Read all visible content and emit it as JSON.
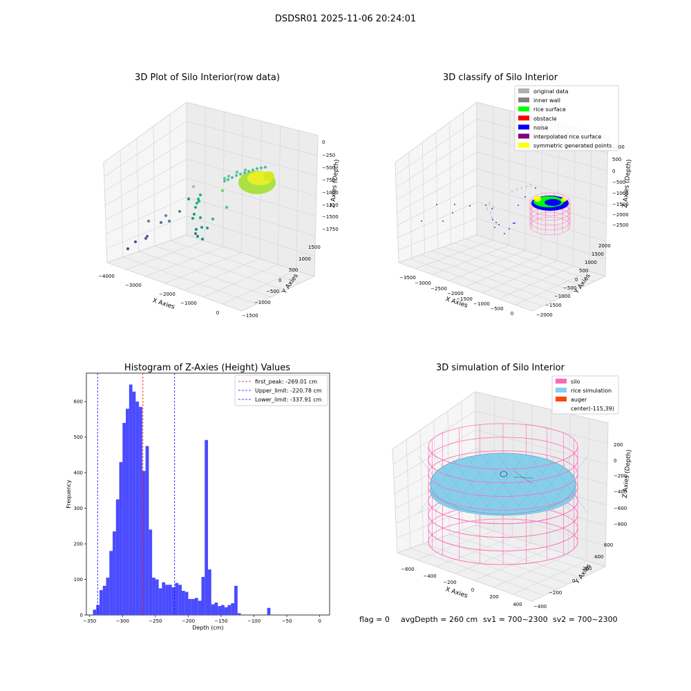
{
  "suptitle": "DSDSR01 2025-11-06 20:24:01",
  "footer": {
    "flag": "flag = 0",
    "avg_depth": "avgDepth = 260 cm",
    "sv1": "sv1 = 700~2300",
    "sv2": "sv2 = 700~2300"
  },
  "colors": {
    "histogram_bar": "#4b4bff",
    "first_peak": "#ff0000",
    "limits": "#0000ff",
    "silo": "#ff69b4",
    "rice_simulation": "#87ceeb",
    "auger": "#ff4500",
    "rice_surface": "#00ff00",
    "noise": "#0000ff",
    "inner_wall": "#808080",
    "original_data": "#b0b0b0",
    "obstacle": "#ff0000",
    "interpolated_rice_surface": "#800080",
    "symmetric_generated_points": "#ffff00"
  },
  "chart_data": [
    {
      "type": "scatter",
      "title": "3D Plot of Silo Interior(row data)",
      "xlabel": "X Axies",
      "ylabel": "Y Axies",
      "zlabel": "Z Axies (Depth)",
      "x_ticks": [
        "−4000",
        "−3000",
        "−2000",
        "−1000",
        "0"
      ],
      "y_ticks": [
        "−1500",
        "−1000",
        "−500",
        "0",
        "500",
        "1000",
        "1500"
      ],
      "z_ticks": [
        "0",
        "−250",
        "−500",
        "−750",
        "−1000",
        "−1250",
        "−1500",
        "−1750"
      ],
      "xlim": [
        -4000,
        200
      ],
      "ylim": [
        -1600,
        1600
      ],
      "zlim": [
        -1900,
        100
      ]
    },
    {
      "type": "scatter",
      "title": "3D classify of Silo Interior",
      "xlabel": "X Axies",
      "ylabel": "Y Axies",
      "zlabel": "Z Axies (Depth)",
      "x_ticks": [
        "−3500",
        "−3000",
        "−2500",
        "−2000",
        "−1500",
        "−1000",
        "−500",
        "0"
      ],
      "y_ticks": [
        "−2000",
        "−1500",
        "−1000",
        "−500",
        "0",
        "500",
        "1000",
        "1500",
        "2000"
      ],
      "z_ticks": [
        "1000",
        "500",
        "0",
        "−500",
        "−1000",
        "−1500",
        "−2000",
        "−2500"
      ],
      "legend": [
        "original data",
        "inner wall",
        "rice surface",
        "obstacle",
        "noise",
        "interpolated rice surface",
        "symmetric generated points"
      ],
      "legend_position": "top-right"
    },
    {
      "type": "bar",
      "title": "Histogram of Z-Axies (Height) Values",
      "xlabel": "Depth (cm)",
      "ylabel": "Frequency",
      "xlim": [
        -355,
        15
      ],
      "ylim": [
        0,
        680
      ],
      "x_ticks": [
        -350,
        -300,
        -250,
        -200,
        -150,
        -100,
        -50,
        0
      ],
      "y_ticks": [
        0,
        100,
        200,
        300,
        400,
        500,
        600
      ],
      "bin_start": -345,
      "bin_width": 5,
      "values": [
        15,
        28,
        70,
        82,
        105,
        180,
        235,
        325,
        430,
        540,
        580,
        648,
        628,
        600,
        585,
        405,
        475,
        240,
        105,
        100,
        75,
        92,
        85,
        85,
        78,
        90,
        85,
        68,
        65,
        45,
        45,
        48,
        40,
        107,
        492,
        128,
        30,
        35,
        25,
        28,
        22,
        28,
        33,
        82,
        5,
        0,
        0,
        0,
        0,
        0,
        0,
        0,
        0,
        20
      ],
      "lines": [
        {
          "name": "first_peak: -269.01 cm",
          "x": -269.01,
          "style": "red-dashed"
        },
        {
          "name": "Upper_limit: -220.78 cm",
          "x": -220.78,
          "style": "blue-dashed"
        },
        {
          "name": "Lower_limit: -337.91 cm",
          "x": -337.91,
          "style": "blue-dashed"
        }
      ],
      "legend_position": "top-right"
    },
    {
      "type": "scatter",
      "title": "3D simulation of Silo Interior",
      "xlabel": "X Axies",
      "ylabel": "Y Axies",
      "zlabel": "Z Axies (Depth)",
      "x_ticks": [
        "−600",
        "−400",
        "−200",
        "0",
        "200",
        "400"
      ],
      "y_ticks": [
        "−400",
        "−200",
        "0",
        "200",
        "400",
        "600"
      ],
      "z_ticks": [
        "200",
        "0",
        "−200",
        "−400",
        "−600",
        "−800"
      ],
      "legend": [
        "silo",
        "rice simulation",
        "auger",
        "center(-115,39)"
      ],
      "legend_position": "top-right"
    }
  ]
}
